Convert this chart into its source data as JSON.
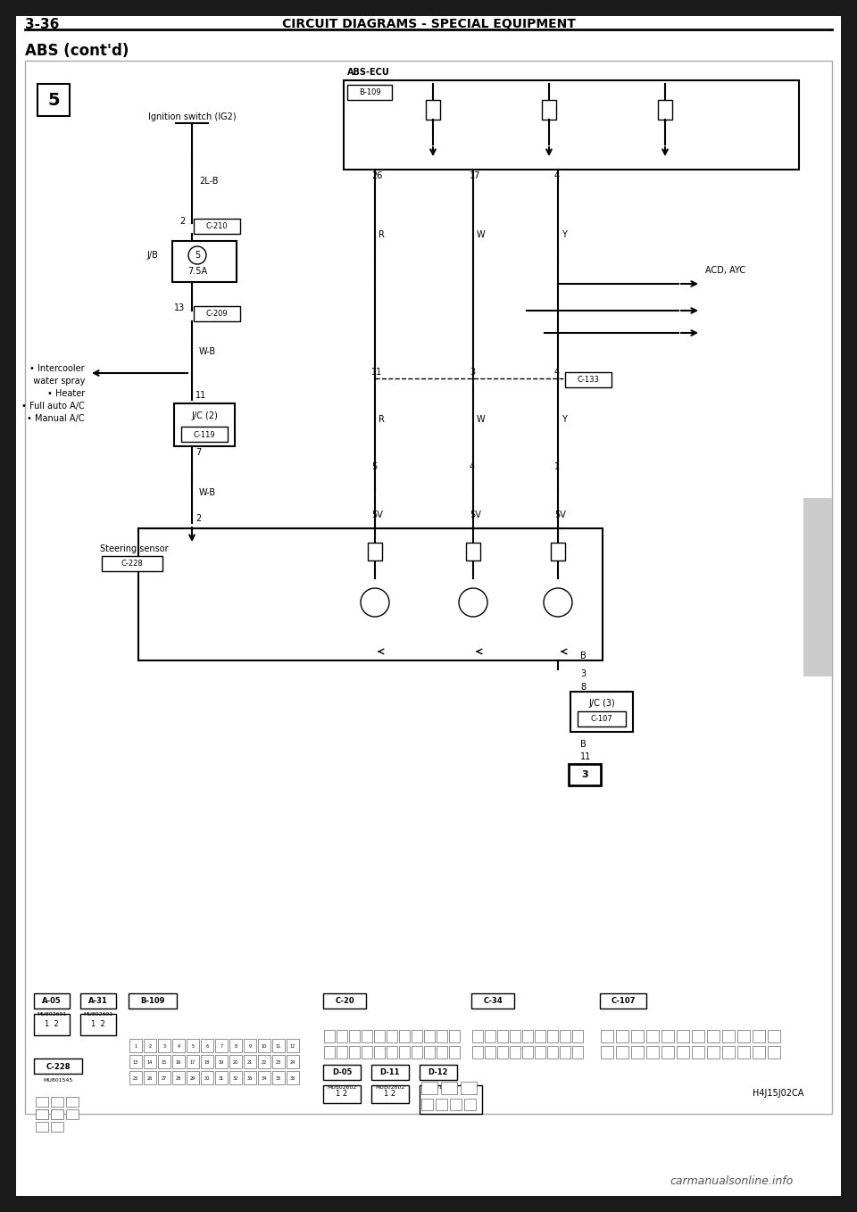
{
  "page_number": "3-36",
  "header_title": "CIRCUIT DIAGRAMS - SPECIAL EQUIPMENT",
  "section_title": "ABS (cont'd)",
  "background_color": "#ffffff",
  "page_bg": "#1a1a1a",
  "diagram_bg": "#ffffff",
  "watermark": "carmanualsonline.info",
  "figure_number": "5",
  "diagram_code": "H4J15J02CA",
  "labels": {
    "ignition_switch": "Ignition switch (IG2)",
    "abs_ecu": "ABS-ECU",
    "b109": "B-109",
    "jb": "J/B",
    "fuse": "7.5A",
    "fuse_num": "5",
    "jc2": "J/C (2)",
    "c119": "C-119",
    "c210": "C-210",
    "c209": "C-209",
    "c133": "C-133",
    "c228": "C-228",
    "c107": "C-107",
    "wire_2lb": "2L-B",
    "wire_wb1": "W-B",
    "wire_wb2": "W-B",
    "acd_ayc": "ACD, AYC",
    "steering_sensor": "Steering sensor",
    "intercooler": "• Intercooler\n  water spray\n• Heater\n• Full auto A/C\n• Manual A/C"
  }
}
